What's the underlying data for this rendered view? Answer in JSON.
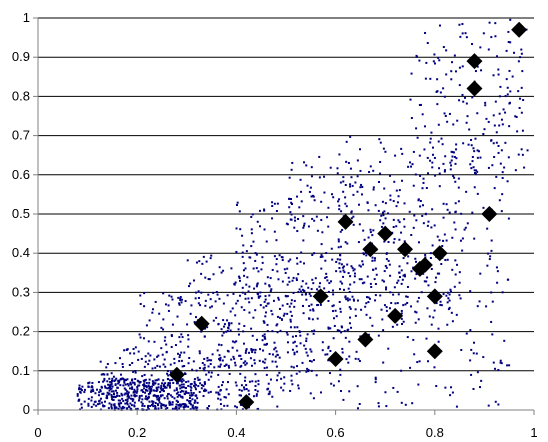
{
  "chart_data": {
    "type": "scatter",
    "title": "",
    "xlabel": "",
    "ylabel": "",
    "xlim": [
      0,
      1
    ],
    "ylim": [
      0,
      1
    ],
    "x_ticks": [
      "0",
      "0.2",
      "0.4",
      "0.6",
      "0.8",
      "1"
    ],
    "y_ticks": [
      "0",
      "0.1",
      "0.2",
      "0.3",
      "0.4",
      "0.5",
      "0.6",
      "0.7",
      "0.8",
      "0.9",
      "1"
    ],
    "grid": "horizontal",
    "legend": "none",
    "colors": {
      "small_points": "#000080",
      "diamonds": "#000000",
      "grid": "#000000",
      "axes": "#808080"
    },
    "series": [
      {
        "marker": "small-dot",
        "description_only": false,
        "clusters": [
          {
            "x": [
              0.08,
              0.32
            ],
            "y": [
              0.0,
              0.08
            ],
            "count": 420
          },
          {
            "x": [
              0.12,
              0.45
            ],
            "y": [
              0.0,
              0.16
            ],
            "count": 260
          },
          {
            "x": [
              0.2,
              0.55
            ],
            "y": [
              0.03,
              0.3
            ],
            "count": 220
          },
          {
            "x": [
              0.3,
              0.65
            ],
            "y": [
              0.1,
              0.4
            ],
            "count": 220
          },
          {
            "x": [
              0.4,
              0.75
            ],
            "y": [
              0.2,
              0.55
            ],
            "count": 200
          },
          {
            "x": [
              0.5,
              0.85
            ],
            "y": [
              0.25,
              0.65
            ],
            "count": 200
          },
          {
            "x": [
              0.6,
              0.95
            ],
            "y": [
              0.3,
              0.7
            ],
            "count": 200
          },
          {
            "x": [
              0.75,
              0.99
            ],
            "y": [
              0.6,
              1.0
            ],
            "count": 180
          },
          {
            "x": [
              0.45,
              0.95
            ],
            "y": [
              0.0,
              0.3
            ],
            "count": 180
          }
        ]
      },
      {
        "marker": "diamond",
        "points": [
          {
            "x": 0.97,
            "y": 0.97
          },
          {
            "x": 0.88,
            "y": 0.89
          },
          {
            "x": 0.88,
            "y": 0.82
          },
          {
            "x": 0.91,
            "y": 0.5
          },
          {
            "x": 0.62,
            "y": 0.48
          },
          {
            "x": 0.7,
            "y": 0.45
          },
          {
            "x": 0.67,
            "y": 0.41
          },
          {
            "x": 0.74,
            "y": 0.41
          },
          {
            "x": 0.81,
            "y": 0.4
          },
          {
            "x": 0.78,
            "y": 0.37
          },
          {
            "x": 0.77,
            "y": 0.36
          },
          {
            "x": 0.57,
            "y": 0.29
          },
          {
            "x": 0.8,
            "y": 0.29
          },
          {
            "x": 0.72,
            "y": 0.24
          },
          {
            "x": 0.33,
            "y": 0.22
          },
          {
            "x": 0.66,
            "y": 0.18
          },
          {
            "x": 0.8,
            "y": 0.15
          },
          {
            "x": 0.6,
            "y": 0.13
          },
          {
            "x": 0.28,
            "y": 0.09
          },
          {
            "x": 0.42,
            "y": 0.02
          }
        ]
      }
    ]
  }
}
